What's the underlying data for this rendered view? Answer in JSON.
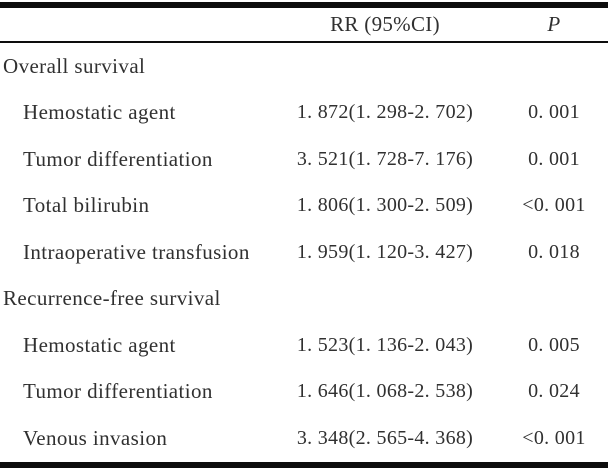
{
  "colors": {
    "background": "#ffffff",
    "text": "#303030",
    "rule": "#0d0d0d"
  },
  "table": {
    "header": {
      "rr": "RR (95%CI)",
      "p": "P"
    },
    "sections": [
      {
        "title": "Overall survival",
        "rows": [
          {
            "label": "Hemostatic agent",
            "rr": "1. 872(1. 298-2. 702)",
            "p": "0. 001"
          },
          {
            "label": "Tumor differentiation",
            "rr": "3. 521(1. 728-7. 176)",
            "p": "0. 001"
          },
          {
            "label": "Total bilirubin",
            "rr": "1. 806(1. 300-2. 509)",
            "p": "<0. 001"
          },
          {
            "label": "Intraoperative transfusion",
            "rr": "1. 959(1. 120-3. 427)",
            "p": "0. 018"
          }
        ]
      },
      {
        "title": "Recurrence-free survival",
        "rows": [
          {
            "label": "Hemostatic agent",
            "rr": "1. 523(1. 136-2. 043)",
            "p": "0. 005"
          },
          {
            "label": "Tumor differentiation",
            "rr": "1. 646(1. 068-2. 538)",
            "p": "0. 024"
          },
          {
            "label": "Venous invasion",
            "rr": "3. 348(2. 565-4. 368)",
            "p": "<0. 001"
          }
        ]
      }
    ]
  }
}
